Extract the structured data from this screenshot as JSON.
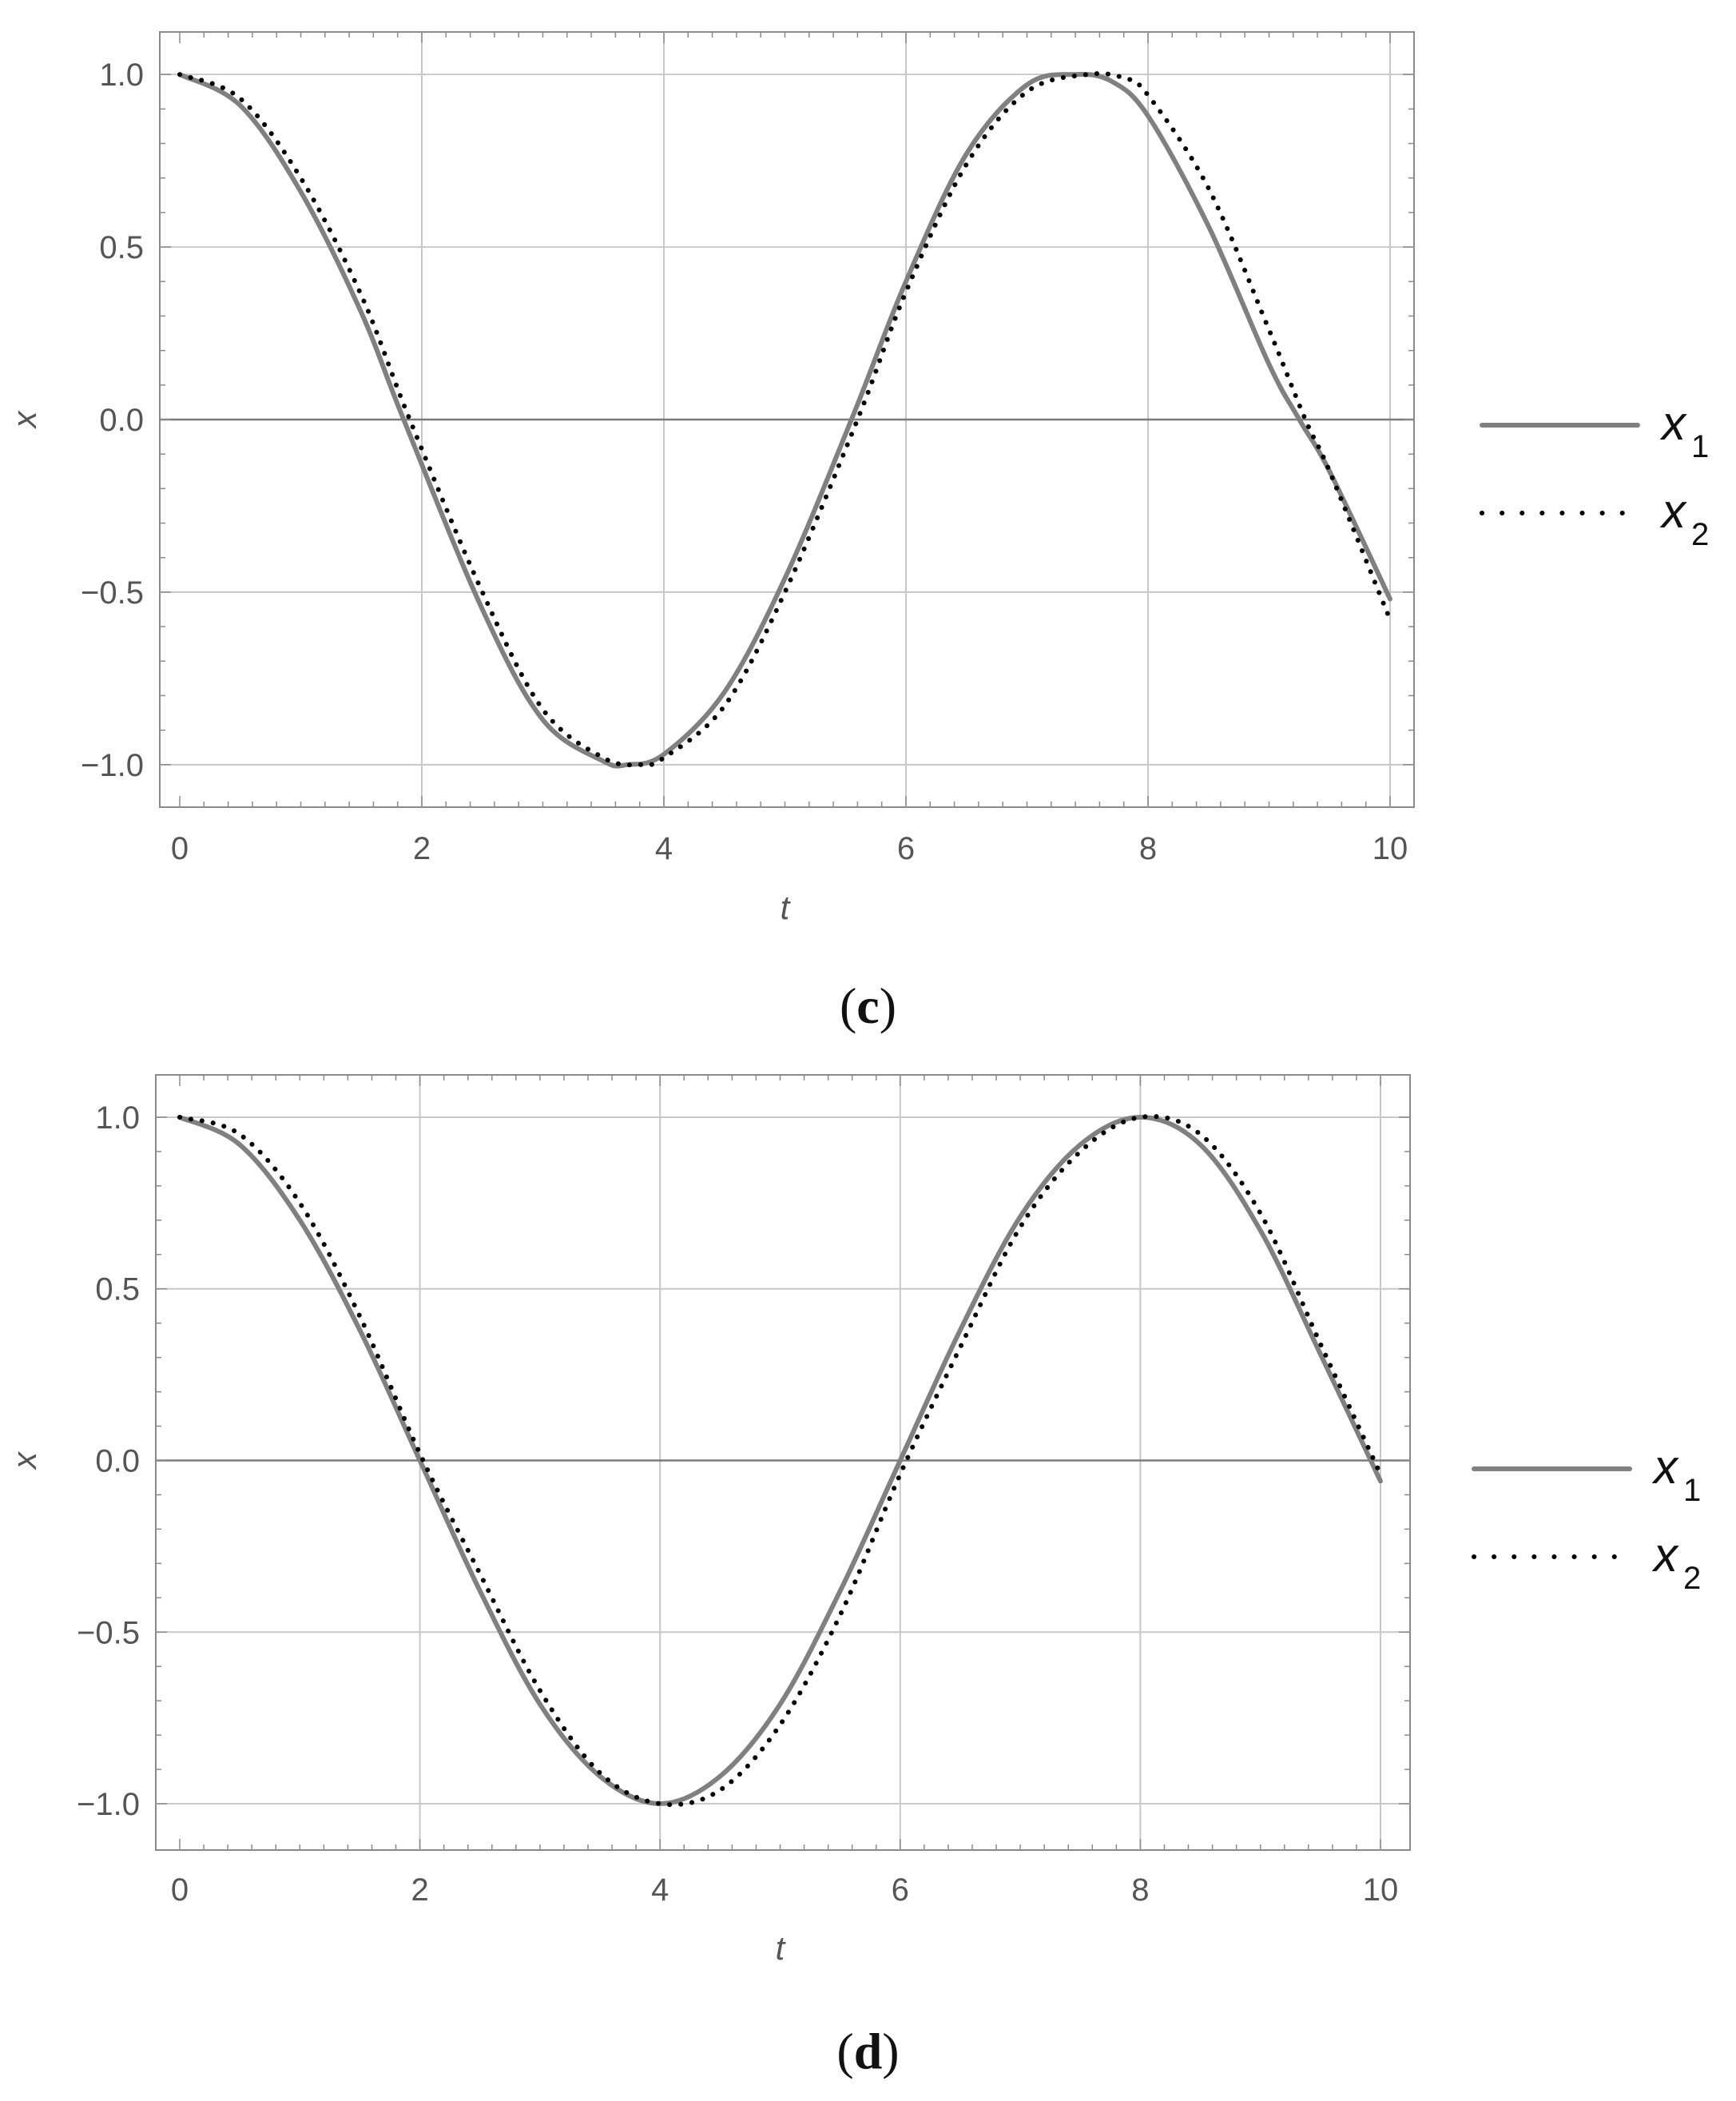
{
  "colors": {
    "series_x1": "#808080",
    "series_x2": "#000000",
    "grid": "#c8c8c8",
    "axis_zero": "#7a7a7a",
    "tick_label": "#555555",
    "frame": "#8a8a8a"
  },
  "chart_data": [
    {
      "panel_label": "c",
      "type": "line",
      "xlabel": "t",
      "ylabel": "x",
      "xlim": [
        0,
        10
      ],
      "ylim": [
        -1.1,
        1.1
      ],
      "xticks": [
        0,
        2,
        4,
        6,
        8,
        10
      ],
      "xtick_labels": [
        "0",
        "2",
        "4",
        "6",
        "8",
        "10"
      ],
      "yticks": [
        1.0,
        0.5,
        0.0,
        -0.5,
        -1.0
      ],
      "ytick_labels": [
        "1.0",
        "0.5",
        "0.0",
        "−0.5",
        "−1.0"
      ],
      "grid": true,
      "legend_position": "right",
      "series": [
        {
          "name": "x1",
          "label_main": "x",
          "label_sub": "1",
          "style": "solid",
          "x": [
            0,
            0.5,
            1,
            1.5,
            1.85,
            2.5,
            3,
            3.5,
            3.7,
            4,
            4.5,
            5,
            5.55,
            6,
            6.5,
            7,
            7.4,
            7.7,
            8,
            8.5,
            9,
            9.25,
            9.5,
            10
          ],
          "y": [
            1.0,
            0.91,
            0.66,
            0.31,
            0.0,
            -0.55,
            -0.87,
            -0.99,
            -1.0,
            -0.97,
            -0.79,
            -0.46,
            0.0,
            0.4,
            0.77,
            0.97,
            1.0,
            0.98,
            0.88,
            0.56,
            0.16,
            0.0,
            -0.15,
            -0.52
          ]
        },
        {
          "name": "x2",
          "label_main": "x",
          "label_sub": "2",
          "style": "dotted",
          "x": [
            0,
            0.5,
            1,
            1.5,
            1.9,
            2.5,
            3,
            3.5,
            3.8,
            4,
            4.5,
            5,
            5.6,
            6,
            6.5,
            7,
            7.5,
            7.8,
            8,
            8.5,
            9,
            9.3,
            9.5,
            10
          ],
          "y": [
            1.0,
            0.93,
            0.7,
            0.36,
            0.0,
            -0.5,
            -0.84,
            -0.98,
            -1.0,
            -0.98,
            -0.83,
            -0.5,
            0.0,
            0.37,
            0.74,
            0.95,
            1.0,
            0.99,
            0.94,
            0.67,
            0.26,
            0.0,
            -0.15,
            -0.58
          ]
        }
      ]
    },
    {
      "panel_label": "d",
      "type": "line",
      "xlabel": "t",
      "ylabel": "x",
      "xlim": [
        0,
        10
      ],
      "ylim": [
        -1.1,
        1.1
      ],
      "xticks": [
        0,
        2,
        4,
        6,
        8,
        10
      ],
      "xtick_labels": [
        "0",
        "2",
        "4",
        "6",
        "8",
        "10"
      ],
      "yticks": [
        1.0,
        0.5,
        0.0,
        -0.5,
        -1.0
      ],
      "ytick_labels": [
        "1.0",
        "0.5",
        "0.0",
        "−0.5",
        "−1.0"
      ],
      "grid": true,
      "legend_position": "right",
      "series": [
        {
          "name": "x1",
          "label_main": "x",
          "label_sub": "1",
          "style": "solid",
          "x": [
            0,
            0.5,
            1,
            1.5,
            2,
            2.5,
            3,
            3.5,
            4,
            4.5,
            5,
            5.5,
            6,
            6.5,
            7,
            7.5,
            8,
            8.5,
            9,
            9.5,
            10
          ],
          "y": [
            1.0,
            0.92,
            0.7,
            0.38,
            0.0,
            -0.38,
            -0.71,
            -0.92,
            -1.0,
            -0.92,
            -0.71,
            -0.38,
            0.0,
            0.38,
            0.71,
            0.92,
            1.0,
            0.92,
            0.67,
            0.31,
            -0.06
          ]
        },
        {
          "name": "x2",
          "label_main": "x",
          "label_sub": "2",
          "style": "dotted",
          "x": [
            0,
            0.5,
            1,
            1.5,
            2,
            2.5,
            3,
            3.5,
            4,
            4.5,
            5,
            5.5,
            6,
            6.5,
            7,
            7.5,
            8,
            8.5,
            9,
            9.5,
            10
          ],
          "y": [
            1.0,
            0.95,
            0.75,
            0.42,
            0.02,
            -0.33,
            -0.67,
            -0.91,
            -1.0,
            -0.96,
            -0.77,
            -0.45,
            -0.04,
            0.33,
            0.68,
            0.9,
            1.0,
            0.95,
            0.72,
            0.34,
            -0.04
          ]
        }
      ]
    }
  ]
}
